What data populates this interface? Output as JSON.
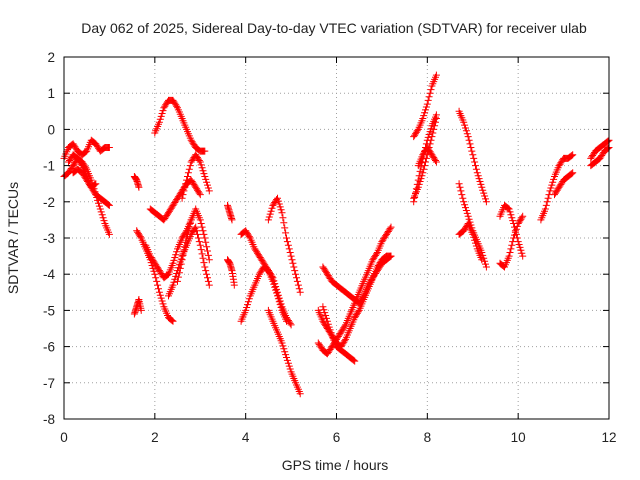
{
  "chart_data": {
    "type": "scatter",
    "title": "Day 062 of 2025, Sidereal Day-to-day VTEC variation (SDTVAR) for receiver ulab",
    "xlabel": "GPS time / hours",
    "ylabel": "SDTVAR / TECUs",
    "xlim": [
      0,
      12
    ],
    "ylim": [
      -8,
      2
    ],
    "xticks": [
      0,
      2,
      4,
      6,
      8,
      10,
      12
    ],
    "yticks": [
      -8,
      -7,
      -6,
      -5,
      -4,
      -3,
      -2,
      -1,
      0,
      1,
      2
    ],
    "grid": true,
    "marker": "plus",
    "marker_color": "#ff0000",
    "series": [
      {
        "name": "t0",
        "x": [
          0.0,
          0.1,
          0.2,
          0.3,
          0.4,
          0.5,
          0.6,
          0.7,
          0.8,
          0.9,
          1.0
        ],
        "y": [
          -0.8,
          -0.5,
          -0.4,
          -0.6,
          -0.7,
          -0.6,
          -0.3,
          -0.4,
          -0.6,
          -0.5,
          -0.5
        ]
      },
      {
        "name": "t1",
        "x": [
          0.0,
          0.1,
          0.2,
          0.3,
          0.4,
          0.5,
          0.6,
          0.7,
          0.8,
          0.9,
          1.0
        ],
        "y": [
          -1.3,
          -1.2,
          -1.0,
          -0.8,
          -0.9,
          -1.1,
          -1.4,
          -1.8,
          -2.2,
          -2.6,
          -2.9
        ]
      },
      {
        "name": "t2",
        "x": [
          0.1,
          0.2,
          0.3,
          0.4,
          0.5,
          0.6,
          0.7,
          0.8,
          0.9,
          1.0
        ],
        "y": [
          -0.9,
          -0.7,
          -0.8,
          -1.0,
          -1.3,
          -1.6,
          -1.8,
          -1.9,
          -2.0,
          -2.1
        ]
      },
      {
        "name": "t3",
        "x": [
          0.2,
          0.3,
          0.4,
          0.5,
          0.6,
          0.7
        ],
        "y": [
          -1.2,
          -1.1,
          -1.2,
          -1.4,
          -1.6,
          -1.5
        ]
      },
      {
        "name": "t4",
        "x": [
          1.55,
          1.6,
          1.65,
          1.7
        ],
        "y": [
          -5.1,
          -4.9,
          -4.7,
          -5.0
        ]
      },
      {
        "name": "t5",
        "x": [
          1.55,
          1.6,
          1.65
        ],
        "y": [
          -1.3,
          -1.4,
          -1.6
        ]
      },
      {
        "name": "t6",
        "x": [
          1.6,
          1.7,
          1.8,
          1.9,
          2.0,
          2.1,
          2.2,
          2.3,
          2.4
        ],
        "y": [
          -2.8,
          -3.0,
          -3.3,
          -3.6,
          -4.0,
          -4.5,
          -4.9,
          -5.2,
          -5.3
        ]
      },
      {
        "name": "t7",
        "x": [
          1.8,
          1.9,
          2.0,
          2.1,
          2.2,
          2.3,
          2.4,
          2.5,
          2.6,
          2.7,
          2.8
        ],
        "y": [
          -3.2,
          -3.5,
          -3.7,
          -3.9,
          -4.1,
          -4.0,
          -3.7,
          -3.3,
          -3.0,
          -2.8,
          -2.5
        ]
      },
      {
        "name": "t8",
        "x": [
          1.9,
          2.0,
          2.1,
          2.2,
          2.3,
          2.4,
          2.5,
          2.6,
          2.7,
          2.8,
          2.9,
          3.0
        ],
        "y": [
          -2.2,
          -2.3,
          -2.4,
          -2.5,
          -2.3,
          -2.1,
          -1.9,
          -1.7,
          -1.5,
          -1.4,
          -1.6,
          -1.8
        ]
      },
      {
        "name": "t9",
        "x": [
          2.0,
          2.1,
          2.2,
          2.3,
          2.4,
          2.5,
          2.6,
          2.7,
          2.8,
          2.9,
          3.0,
          3.1
        ],
        "y": [
          -0.1,
          0.2,
          0.6,
          0.8,
          0.8,
          0.6,
          0.3,
          0.0,
          -0.3,
          -0.5,
          -0.6,
          -0.6
        ]
      },
      {
        "name": "t10",
        "x": [
          2.3,
          2.4,
          2.5,
          2.6,
          2.7,
          2.8,
          2.9,
          3.0,
          3.1,
          3.2
        ],
        "y": [
          -4.6,
          -4.3,
          -3.9,
          -3.5,
          -3.2,
          -2.9,
          -2.7,
          -3.2,
          -3.8,
          -4.3
        ]
      },
      {
        "name": "t11",
        "x": [
          2.6,
          2.7,
          2.8,
          2.9,
          3.0,
          3.1,
          3.2
        ],
        "y": [
          -1.9,
          -1.4,
          -0.9,
          -0.7,
          -0.9,
          -1.3,
          -1.7
        ]
      },
      {
        "name": "t12",
        "x": [
          2.5,
          2.6,
          2.7,
          2.8,
          2.9,
          3.0,
          3.1,
          3.2
        ],
        "y": [
          -4.2,
          -3.6,
          -3.0,
          -2.5,
          -2.2,
          -2.5,
          -3.0,
          -3.6
        ]
      },
      {
        "name": "t13",
        "x": [
          3.6,
          3.65,
          3.7
        ],
        "y": [
          -2.1,
          -2.3,
          -2.5
        ]
      },
      {
        "name": "t14",
        "x": [
          3.6,
          3.65,
          3.7,
          3.75
        ],
        "y": [
          -3.6,
          -3.7,
          -3.9,
          -4.3
        ]
      },
      {
        "name": "t15",
        "x": [
          3.9,
          4.0,
          4.1,
          4.2,
          4.3,
          4.4,
          4.5,
          4.6,
          4.7,
          4.8,
          4.9,
          5.0
        ],
        "y": [
          -2.9,
          -2.8,
          -3.0,
          -3.3,
          -3.5,
          -3.7,
          -3.9,
          -4.1,
          -4.5,
          -4.9,
          -5.2,
          -5.4
        ]
      },
      {
        "name": "t16",
        "x": [
          3.9,
          4.0,
          4.1,
          4.2,
          4.3,
          4.4,
          4.5,
          4.6,
          4.7,
          4.8,
          4.9
        ],
        "y": [
          -5.3,
          -5.0,
          -4.6,
          -4.3,
          -4.0,
          -3.8,
          -3.9,
          -4.2,
          -4.6,
          -5.0,
          -5.3
        ]
      },
      {
        "name": "t17",
        "x": [
          4.5,
          4.6,
          4.7,
          4.8,
          4.9,
          5.0,
          5.1,
          5.2
        ],
        "y": [
          -2.5,
          -2.1,
          -1.9,
          -2.3,
          -3.0,
          -3.5,
          -4.0,
          -4.5
        ]
      },
      {
        "name": "t18",
        "x": [
          4.5,
          4.6,
          4.7,
          4.8,
          4.9,
          5.0,
          5.1,
          5.2
        ],
        "y": [
          -5.0,
          -5.3,
          -5.6,
          -5.9,
          -6.3,
          -6.7,
          -7.0,
          -7.3
        ]
      },
      {
        "name": "t19",
        "x": [
          5.6,
          5.7,
          5.8,
          5.9,
          6.0,
          6.1,
          6.2,
          6.3,
          6.4,
          6.5,
          6.6,
          6.7,
          6.8,
          6.9,
          7.0,
          7.1,
          7.2
        ],
        "y": [
          -5.9,
          -6.1,
          -6.2,
          -6.0,
          -5.8,
          -5.6,
          -5.4,
          -5.1,
          -4.8,
          -4.5,
          -4.2,
          -3.9,
          -3.6,
          -3.4,
          -3.1,
          -2.9,
          -2.7
        ]
      },
      {
        "name": "t20",
        "x": [
          5.7,
          5.8,
          5.9,
          6.0,
          6.1,
          6.2,
          6.3,
          6.4,
          6.5,
          6.6,
          6.7,
          6.8,
          6.9,
          7.0,
          7.1,
          7.2
        ],
        "y": [
          -3.8,
          -4.0,
          -4.2,
          -4.3,
          -4.4,
          -4.5,
          -4.6,
          -4.7,
          -4.8,
          -4.6,
          -4.3,
          -4.1,
          -3.8,
          -3.6,
          -3.5,
          -3.5
        ]
      },
      {
        "name": "t21",
        "x": [
          5.6,
          5.7,
          5.8,
          5.9,
          6.0,
          6.1,
          6.2,
          6.3,
          6.4,
          6.5,
          6.6,
          6.7,
          6.8,
          6.9,
          7.0,
          7.1,
          7.2
        ],
        "y": [
          -5.0,
          -5.3,
          -5.5,
          -5.7,
          -5.9,
          -6.0,
          -5.8,
          -5.5,
          -5.2,
          -5.0,
          -4.7,
          -4.4,
          -4.1,
          -3.9,
          -3.7,
          -3.6,
          -3.5
        ]
      },
      {
        "name": "t22",
        "x": [
          5.7,
          5.8,
          5.9,
          6.0,
          6.1,
          6.2,
          6.3,
          6.4
        ],
        "y": [
          -4.9,
          -5.3,
          -5.7,
          -6.0,
          -6.1,
          -6.2,
          -6.3,
          -6.4
        ]
      },
      {
        "name": "t23",
        "x": [
          7.7,
          7.8,
          7.9,
          8.0,
          8.1,
          8.2
        ],
        "y": [
          -0.2,
          0.0,
          0.3,
          0.7,
          1.2,
          1.5
        ]
      },
      {
        "name": "t24",
        "x": [
          7.7,
          7.8,
          7.9,
          8.0,
          8.1,
          8.2
        ],
        "y": [
          -1.9,
          -1.6,
          -1.2,
          -0.7,
          -0.2,
          0.3
        ]
      },
      {
        "name": "t25",
        "x": [
          7.7,
          7.8,
          7.9,
          8.0,
          8.1,
          8.2
        ],
        "y": [
          -2.0,
          -1.4,
          -0.8,
          -0.3,
          0.1,
          0.4
        ]
      },
      {
        "name": "t26",
        "x": [
          7.8,
          7.9,
          8.0,
          8.1,
          8.2
        ],
        "y": [
          -1.0,
          -0.7,
          -0.5,
          -0.7,
          -0.9
        ]
      },
      {
        "name": "t27",
        "x": [
          8.7,
          8.8,
          8.9,
          9.0,
          9.1,
          9.2,
          9.3
        ],
        "y": [
          0.5,
          0.2,
          -0.2,
          -0.7,
          -1.2,
          -1.6,
          -2.0
        ]
      },
      {
        "name": "t28",
        "x": [
          8.7,
          8.8,
          8.9,
          9.0,
          9.1,
          9.2,
          9.3
        ],
        "y": [
          -1.5,
          -2.0,
          -2.4,
          -2.8,
          -3.1,
          -3.4,
          -3.8
        ]
      },
      {
        "name": "t29",
        "x": [
          8.7,
          8.8,
          8.9,
          9.0,
          9.1,
          9.2
        ],
        "y": [
          -2.9,
          -2.8,
          -2.6,
          -2.9,
          -3.3,
          -3.6
        ]
      },
      {
        "name": "t30",
        "x": [
          9.6,
          9.7,
          9.8,
          9.9,
          10.0,
          10.1
        ],
        "y": [
          -2.4,
          -2.1,
          -2.2,
          -2.6,
          -3.1,
          -3.5
        ]
      },
      {
        "name": "t31",
        "x": [
          9.6,
          9.7,
          9.8,
          9.9,
          10.0,
          10.1
        ],
        "y": [
          -3.7,
          -3.8,
          -3.5,
          -3.0,
          -2.6,
          -2.4
        ]
      },
      {
        "name": "t32",
        "x": [
          10.5,
          10.6,
          10.7,
          10.8,
          10.9,
          11.0,
          11.1,
          11.2
        ],
        "y": [
          -2.5,
          -2.2,
          -1.7,
          -1.3,
          -1.0,
          -0.8,
          -0.8,
          -0.7
        ]
      },
      {
        "name": "t33",
        "x": [
          10.8,
          10.9,
          11.0,
          11.1,
          11.2
        ],
        "y": [
          -1.8,
          -1.6,
          -1.4,
          -1.3,
          -1.2
        ]
      },
      {
        "name": "t34",
        "x": [
          11.6,
          11.7,
          11.8,
          11.9,
          12.0
        ],
        "y": [
          -0.8,
          -0.6,
          -0.5,
          -0.4,
          -0.3
        ]
      },
      {
        "name": "t35",
        "x": [
          11.6,
          11.7,
          11.8,
          11.9,
          12.0
        ],
        "y": [
          -1.0,
          -0.9,
          -0.8,
          -0.6,
          -0.5
        ]
      }
    ]
  }
}
